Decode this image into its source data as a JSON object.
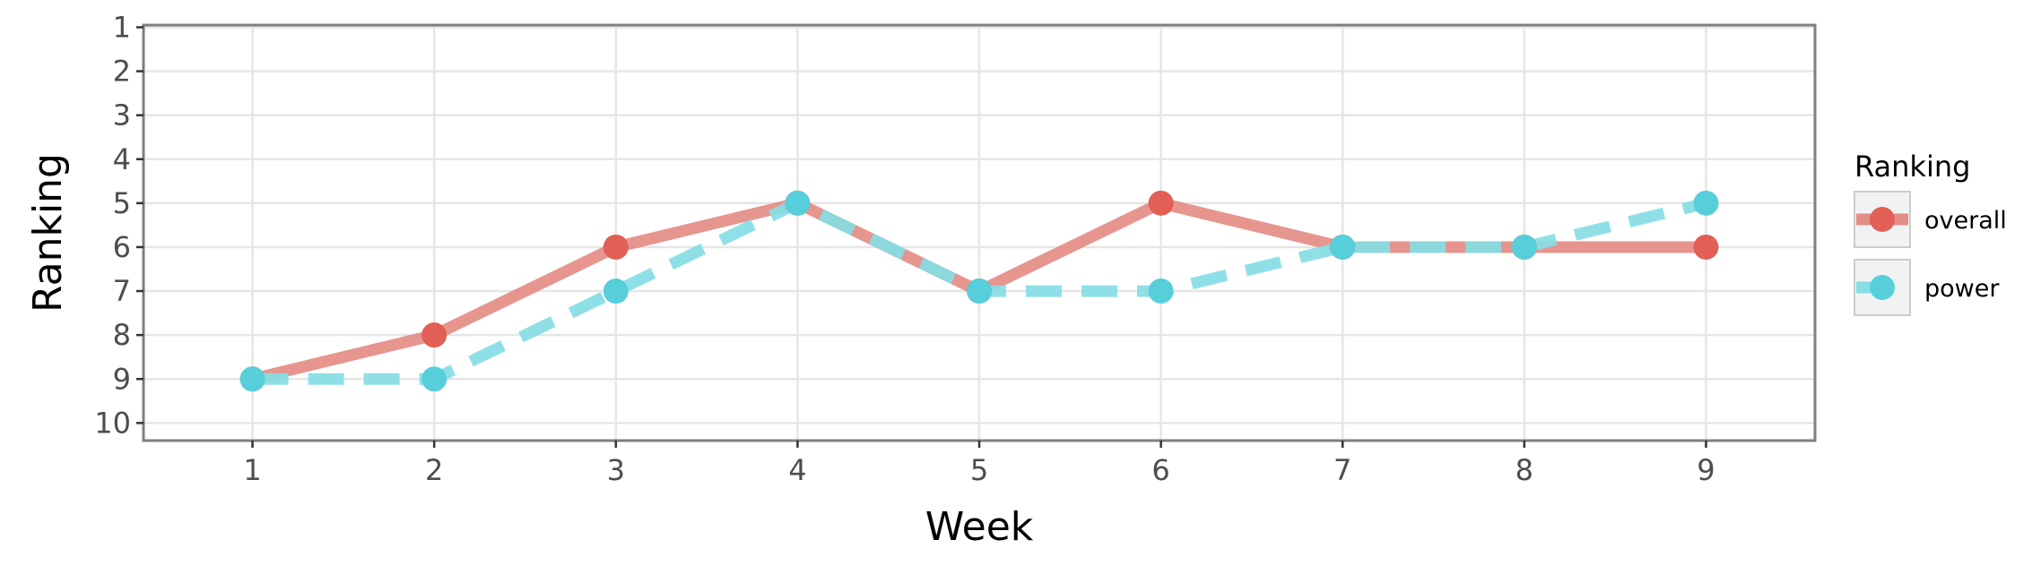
{
  "chart_data": {
    "type": "line",
    "title": "",
    "xlabel": "Week",
    "ylabel": "Ranking",
    "x": [
      1,
      2,
      3,
      4,
      5,
      6,
      7,
      8,
      9
    ],
    "x_ticks": [
      "1",
      "2",
      "3",
      "4",
      "5",
      "6",
      "7",
      "8",
      "9"
    ],
    "y_ticks": [
      "1",
      "2",
      "3",
      "4",
      "5",
      "6",
      "7",
      "8",
      "9",
      "10"
    ],
    "xlim": [
      0.4,
      9.6
    ],
    "ylim": [
      10.4,
      0.95
    ],
    "y_reversed": true,
    "grid": true,
    "legend": {
      "title": "Ranking",
      "position": "right"
    },
    "series": [
      {
        "name": "overall",
        "values": [
          9,
          8,
          6,
          5,
          7,
          5,
          6,
          6,
          6
        ],
        "color": "#E15F54",
        "line_color": "#E48C86",
        "line_style": "solid"
      },
      {
        "name": "power",
        "values": [
          9,
          9,
          7,
          5,
          7,
          7,
          6,
          6,
          5
        ],
        "color": "#56CFDA",
        "line_color": "#86DDE4",
        "line_style": "dashed"
      }
    ]
  }
}
